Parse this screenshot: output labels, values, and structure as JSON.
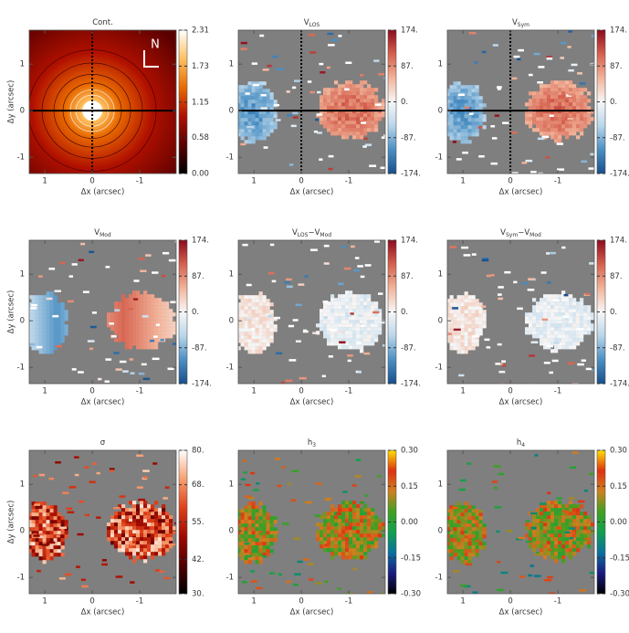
{
  "chart_data": [
    {
      "type": "heatmap",
      "title": [
        {
          "text": "Cont."
        }
      ],
      "xlabel": "Δx (arcsec)",
      "ylabel": "Δy (arcsec)",
      "xlim": [
        1.33,
        -1.77
      ],
      "ylim": [
        -1.35,
        1.73
      ],
      "xticks": [
        1,
        0,
        -1
      ],
      "yticks": [
        1,
        0,
        -1
      ],
      "clim": [
        0,
        2.31
      ],
      "cticks": [
        {
          "value": 0,
          "label": "0.00"
        },
        {
          "value": 0.58,
          "label": "0.58"
        },
        {
          "value": 1.15,
          "label": "1.15"
        },
        {
          "value": 1.73,
          "label": "1.73"
        },
        {
          "value": 2.31,
          "label": "2.31"
        }
      ],
      "colormap": [
        "#000000",
        "#5a0000",
        "#b01000",
        "#e86a00",
        "#ffc060",
        "#ffffff"
      ],
      "annotation": "N"
    },
    {
      "type": "heatmap",
      "title": [
        {
          "text": "V"
        },
        {
          "text": "LOS",
          "sub": true
        }
      ],
      "xlabel": "Δx (arcsec)",
      "xlim": [
        1.33,
        -1.77
      ],
      "ylim": [
        -1.35,
        1.73
      ],
      "xticks": [
        1,
        0,
        -1
      ],
      "yticks": [
        1,
        0,
        -1
      ],
      "clim": [
        -174,
        174
      ],
      "cticks": [
        {
          "value": -174,
          "label": "-174."
        },
        {
          "value": -87,
          "label": "-87."
        },
        {
          "value": 0,
          "label": "0."
        },
        {
          "value": 87,
          "label": "87."
        },
        {
          "value": 174,
          "label": "174."
        }
      ],
      "colormap": [
        "#174f8c",
        "#4a8fc4",
        "#b9d6ea",
        "#f7f7f7",
        "#f2b49a",
        "#d6604d",
        "#8e0a1e"
      ]
    },
    {
      "type": "heatmap",
      "title": [
        {
          "text": "V"
        },
        {
          "text": "Sym",
          "sub": true
        }
      ],
      "xlabel": "Δx (arcsec)",
      "xlim": [
        1.33,
        -1.77
      ],
      "ylim": [
        -1.35,
        1.73
      ],
      "xticks": [
        1,
        0,
        -1
      ],
      "yticks": [
        1,
        0,
        -1
      ],
      "clim": [
        -174,
        174
      ],
      "cticks": [
        {
          "value": -174,
          "label": "-174."
        },
        {
          "value": -87,
          "label": "-87."
        },
        {
          "value": 0,
          "label": "0."
        },
        {
          "value": 87,
          "label": "87."
        },
        {
          "value": 174,
          "label": "174."
        }
      ],
      "colormap": [
        "#174f8c",
        "#4a8fc4",
        "#b9d6ea",
        "#f7f7f7",
        "#f2b49a",
        "#d6604d",
        "#8e0a1e"
      ]
    },
    {
      "type": "heatmap",
      "title": [
        {
          "text": "V"
        },
        {
          "text": "Mod",
          "sub": true
        }
      ],
      "xlabel": "Δx (arcsec)",
      "ylabel": "Δy (arcsec)",
      "xlim": [
        1.33,
        -1.77
      ],
      "ylim": [
        -1.35,
        1.73
      ],
      "xticks": [
        1,
        0,
        -1
      ],
      "yticks": [
        1,
        0,
        -1
      ],
      "clim": [
        -174,
        174
      ],
      "cticks": [
        {
          "value": -174,
          "label": "-174."
        },
        {
          "value": -87,
          "label": "-87."
        },
        {
          "value": 0,
          "label": "0."
        },
        {
          "value": 87,
          "label": "87."
        },
        {
          "value": 174,
          "label": "174."
        }
      ],
      "colormap": [
        "#174f8c",
        "#4a8fc4",
        "#b9d6ea",
        "#f7f7f7",
        "#f2b49a",
        "#d6604d",
        "#8e0a1e"
      ]
    },
    {
      "type": "heatmap",
      "title": [
        {
          "text": "V"
        },
        {
          "text": "LOS",
          "sub": true
        },
        {
          "text": "−V"
        },
        {
          "text": "Mod",
          "sub": true
        }
      ],
      "xlabel": "Δx (arcsec)",
      "xlim": [
        1.33,
        -1.77
      ],
      "ylim": [
        -1.35,
        1.73
      ],
      "xticks": [
        1,
        0,
        -1
      ],
      "yticks": [
        1,
        0,
        -1
      ],
      "clim": [
        -174,
        174
      ],
      "cticks": [
        {
          "value": -174,
          "label": "-174."
        },
        {
          "value": -87,
          "label": "-87."
        },
        {
          "value": 0,
          "label": "0."
        },
        {
          "value": 87,
          "label": "87."
        },
        {
          "value": 174,
          "label": "174."
        }
      ],
      "colormap": [
        "#174f8c",
        "#4a8fc4",
        "#b9d6ea",
        "#f7f7f7",
        "#f2b49a",
        "#d6604d",
        "#8e0a1e"
      ]
    },
    {
      "type": "heatmap",
      "title": [
        {
          "text": "V"
        },
        {
          "text": "Sym",
          "sub": true
        },
        {
          "text": "−V"
        },
        {
          "text": "Mod",
          "sub": true
        }
      ],
      "xlabel": "Δx (arcsec)",
      "xlim": [
        1.33,
        -1.77
      ],
      "ylim": [
        -1.35,
        1.73
      ],
      "xticks": [
        1,
        0,
        -1
      ],
      "yticks": [
        1,
        0,
        -1
      ],
      "clim": [
        -174,
        174
      ],
      "cticks": [
        {
          "value": -174,
          "label": "-174."
        },
        {
          "value": -87,
          "label": "-87."
        },
        {
          "value": 0,
          "label": "0."
        },
        {
          "value": 87,
          "label": "87."
        },
        {
          "value": 174,
          "label": "174."
        }
      ],
      "colormap": [
        "#174f8c",
        "#4a8fc4",
        "#b9d6ea",
        "#f7f7f7",
        "#f2b49a",
        "#d6604d",
        "#8e0a1e"
      ]
    },
    {
      "type": "heatmap",
      "title": [
        {
          "text": "σ"
        }
      ],
      "xlabel": "Δx (arcsec)",
      "ylabel": "Δy (arcsec)",
      "xlim": [
        1.33,
        -1.77
      ],
      "ylim": [
        -1.35,
        1.73
      ],
      "xticks": [
        1,
        0,
        -1
      ],
      "yticks": [
        1,
        0,
        -1
      ],
      "clim": [
        30,
        80
      ],
      "cticks": [
        {
          "value": 30,
          "label": "30."
        },
        {
          "value": 42,
          "label": "42."
        },
        {
          "value": 55,
          "label": "55."
        },
        {
          "value": 68,
          "label": "68."
        },
        {
          "value": 80,
          "label": "80."
        }
      ],
      "colormap": [
        "#000000",
        "#500000",
        "#a00a00",
        "#e0401a",
        "#f7a070",
        "#ffffff"
      ]
    },
    {
      "type": "heatmap",
      "title": [
        {
          "text": "h"
        },
        {
          "text": "3",
          "sub": true
        }
      ],
      "xlabel": "Δx (arcsec)",
      "xlim": [
        1.33,
        -1.77
      ],
      "ylim": [
        -1.35,
        1.73
      ],
      "xticks": [
        1,
        0,
        -1
      ],
      "yticks": [
        1,
        0,
        -1
      ],
      "clim": [
        -0.3,
        0.3
      ],
      "cticks": [
        {
          "value": -0.3,
          "label": "-0.30"
        },
        {
          "value": -0.15,
          "label": "-0.15"
        },
        {
          "value": 0,
          "label": "0.00"
        },
        {
          "value": 0.15,
          "label": "0.15"
        },
        {
          "value": 0.3,
          "label": "0.30"
        }
      ],
      "colormap": [
        "#000000",
        "#1a1a80",
        "#0a70a0",
        "#10a050",
        "#40a020",
        "#d08020",
        "#e03010",
        "#ffe000"
      ]
    },
    {
      "type": "heatmap",
      "title": [
        {
          "text": "h"
        },
        {
          "text": "4",
          "sub": true
        }
      ],
      "xlabel": "Δx (arcsec)",
      "xlim": [
        1.33,
        -1.77
      ],
      "ylim": [
        -1.35,
        1.73
      ],
      "xticks": [
        1,
        0,
        -1
      ],
      "yticks": [
        1,
        0,
        -1
      ],
      "clim": [
        -0.3,
        0.3
      ],
      "cticks": [
        {
          "value": -0.3,
          "label": "-0.30"
        },
        {
          "value": -0.15,
          "label": "-0.15"
        },
        {
          "value": 0,
          "label": "0.00"
        },
        {
          "value": 0.15,
          "label": "0.15"
        },
        {
          "value": 0.3,
          "label": "0.30"
        }
      ],
      "colormap": [
        "#000000",
        "#1a1a80",
        "#0a70a0",
        "#10a050",
        "#40a020",
        "#d08020",
        "#e03010",
        "#ffe000"
      ]
    }
  ]
}
